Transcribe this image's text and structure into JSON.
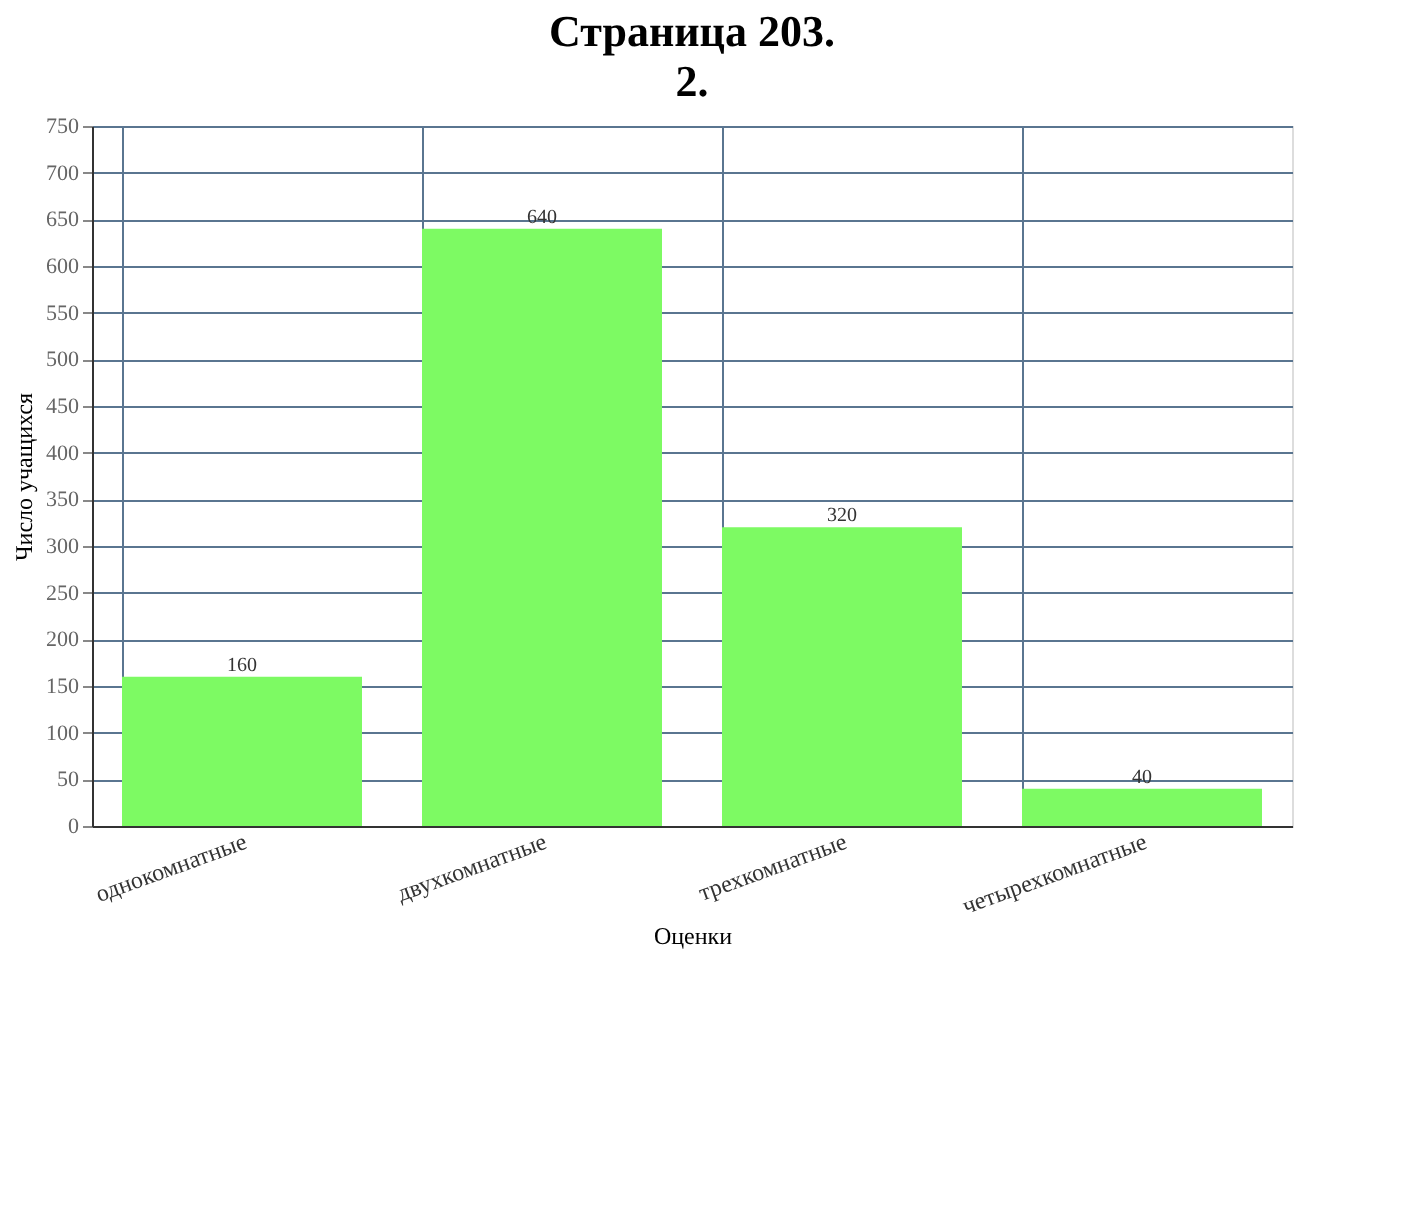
{
  "chart_data": {
    "type": "bar",
    "title": "Страница 203.",
    "annotations": [
      "2."
    ],
    "xlabel": "Оценки",
    "ylabel": "Число учащихся",
    "categories": [
      "однокомнатные",
      "двухкомнатные",
      "трехкомнатные",
      "четырехкомнатные"
    ],
    "values": [
      160,
      640,
      320,
      40
    ],
    "color": "#7dfa63",
    "ylim": [
      0,
      750
    ],
    "yticks": [
      0,
      50,
      100,
      150,
      200,
      250,
      300,
      350,
      400,
      450,
      500,
      550,
      600,
      650,
      700,
      750
    ],
    "grid": true,
    "data_labels": true
  }
}
